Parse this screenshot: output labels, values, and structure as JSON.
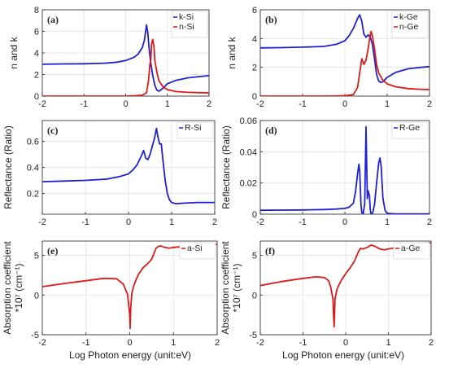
{
  "figure": {
    "xlabel_bottom": "Log Photon energy (unit:eV)"
  },
  "chart_data": [
    {
      "id": "a",
      "panel_label": "(a)",
      "type": "line",
      "ylabel": "n and k",
      "ylabel2": "",
      "xlim": [
        -2,
        2
      ],
      "ylim": [
        0,
        8
      ],
      "xticks": [
        -2,
        -1,
        0,
        1,
        2
      ],
      "yticks": [
        0,
        2,
        4,
        6,
        8
      ],
      "grid": true,
      "legend_position": "top-right",
      "series": [
        {
          "name": "k-Si",
          "color": "#1f1fd6",
          "x": [
            -2,
            -1.5,
            -1,
            -0.5,
            -0.2,
            0,
            0.2,
            0.3,
            0.4,
            0.45,
            0.5,
            0.53,
            0.56,
            0.6,
            0.65,
            0.7,
            0.75,
            0.8,
            0.9,
            1.0,
            1.2,
            1.5,
            1.8,
            2.0
          ],
          "y": [
            2.95,
            2.98,
            3.0,
            3.05,
            3.15,
            3.3,
            3.6,
            3.9,
            4.5,
            5.2,
            6.6,
            5.9,
            4.5,
            3.1,
            1.9,
            1.0,
            0.55,
            0.45,
            0.75,
            1.15,
            1.45,
            1.7,
            1.82,
            1.9
          ]
        },
        {
          "name": "n-Si",
          "color": "#e01818",
          "x": [
            -2,
            -1,
            -0.5,
            0,
            0.2,
            0.4,
            0.5,
            0.55,
            0.58,
            0.6,
            0.62,
            0.65,
            0.68,
            0.7,
            0.75,
            0.8,
            0.9,
            1.0,
            1.2,
            1.5,
            1.8,
            2.0
          ],
          "y": [
            0,
            0,
            0,
            0,
            0.02,
            0.08,
            0.3,
            1.5,
            2.9,
            3.3,
            4.8,
            5.25,
            4.6,
            3.3,
            2.2,
            1.4,
            0.85,
            0.6,
            0.42,
            0.35,
            0.32,
            0.3
          ]
        }
      ]
    },
    {
      "id": "b",
      "panel_label": "(b)",
      "type": "line",
      "ylabel": "n and k",
      "ylabel2": "",
      "xlim": [
        -2,
        2
      ],
      "ylim": [
        0,
        6
      ],
      "xticks": [
        -2,
        -1,
        0,
        1,
        2
      ],
      "yticks": [
        0,
        2,
        4,
        6
      ],
      "grid": true,
      "legend_position": "top-right",
      "series": [
        {
          "name": "k-Ge",
          "color": "#1f1fd6",
          "x": [
            -2,
            -1.5,
            -1,
            -0.5,
            -0.2,
            0,
            0.1,
            0.2,
            0.3,
            0.35,
            0.4,
            0.45,
            0.5,
            0.55,
            0.6,
            0.65,
            0.7,
            0.75,
            0.8,
            0.85,
            0.9,
            1.0,
            1.2,
            1.5,
            1.8,
            2.0
          ],
          "y": [
            3.35,
            3.37,
            3.4,
            3.45,
            3.6,
            3.85,
            4.2,
            4.7,
            5.4,
            5.65,
            5.2,
            4.3,
            4.1,
            4.25,
            4.1,
            3.6,
            2.6,
            1.5,
            1.05,
            0.95,
            1.0,
            1.3,
            1.65,
            1.9,
            2.0,
            2.05
          ]
        },
        {
          "name": "n-Ge",
          "color": "#e01818",
          "x": [
            -2,
            -1,
            -0.5,
            -0.2,
            0,
            0.2,
            0.3,
            0.35,
            0.4,
            0.45,
            0.5,
            0.55,
            0.58,
            0.62,
            0.65,
            0.7,
            0.75,
            0.8,
            0.9,
            1.0,
            1.2,
            1.5,
            1.8,
            2.0
          ],
          "y": [
            0,
            0,
            0,
            0.01,
            0.03,
            0.1,
            0.6,
            1.6,
            2.6,
            2.2,
            2.5,
            3.3,
            3.9,
            4.5,
            4.2,
            3.3,
            2.2,
            1.6,
            1.1,
            0.85,
            0.65,
            0.52,
            0.47,
            0.45
          ]
        }
      ]
    },
    {
      "id": "c",
      "panel_label": "(c)",
      "type": "line",
      "ylabel": "Reflectance (Ratio)",
      "ylabel2": "",
      "xlim": [
        -2,
        2
      ],
      "ylim": [
        0.04,
        0.76
      ],
      "xticks": [
        -2,
        -1,
        0,
        1,
        2
      ],
      "yticks": [
        0.2,
        0.4,
        0.6
      ],
      "grid": true,
      "legend_position": "top-right",
      "series": [
        {
          "name": "R-Si",
          "color": "#1f1fd6",
          "x": [
            -2,
            -1.5,
            -1,
            -0.5,
            -0.2,
            0,
            0.1,
            0.2,
            0.3,
            0.35,
            0.4,
            0.45,
            0.5,
            0.55,
            0.6,
            0.65,
            0.68,
            0.72,
            0.76,
            0.8,
            0.85,
            0.9,
            0.95,
            1.0,
            1.1,
            1.3,
            1.6,
            2.0
          ],
          "y": [
            0.29,
            0.295,
            0.3,
            0.31,
            0.33,
            0.35,
            0.38,
            0.42,
            0.49,
            0.53,
            0.47,
            0.46,
            0.5,
            0.56,
            0.62,
            0.7,
            0.64,
            0.58,
            0.58,
            0.45,
            0.3,
            0.2,
            0.15,
            0.13,
            0.12,
            0.125,
            0.13,
            0.13
          ]
        }
      ]
    },
    {
      "id": "d",
      "panel_label": "(d)",
      "type": "line",
      "ylabel": "Reflectance (Ratio)",
      "ylabel2": "",
      "xlim": [
        -2,
        2
      ],
      "ylim": [
        0,
        0.06
      ],
      "xticks": [
        -2,
        -1,
        0,
        1,
        2
      ],
      "yticks": [
        0,
        0.02,
        0.04,
        0.06
      ],
      "grid": true,
      "legend_position": "top-right",
      "series": [
        {
          "name": "R-Ge",
          "color": "#1f1fd6",
          "x": [
            -2,
            -1.5,
            -1,
            -0.5,
            -0.2,
            0,
            0.1,
            0.2,
            0.25,
            0.3,
            0.33,
            0.35,
            0.38,
            0.4,
            0.43,
            0.47,
            0.5,
            0.53,
            0.55,
            0.58,
            0.6,
            0.62,
            0.65,
            0.7,
            0.75,
            0.8,
            0.83,
            0.86,
            0.9,
            0.95,
            1.0,
            1.2,
            1.5,
            2.0
          ],
          "y": [
            0.0025,
            0.0026,
            0.0027,
            0.003,
            0.0033,
            0.0037,
            0.0045,
            0.007,
            0.014,
            0.026,
            0.032,
            0.028,
            0.006,
            0.001,
            0.0,
            0.007,
            0.056,
            0.01,
            0.015,
            0.012,
            0.003,
            0.0,
            0.0,
            0.006,
            0.02,
            0.033,
            0.036,
            0.03,
            0.01,
            0.0025,
            0.0005,
            0.0002,
            0.0002,
            0.0002
          ]
        }
      ]
    },
    {
      "id": "e",
      "panel_label": "(e)",
      "type": "line",
      "ylabel": "Absorption coefficient",
      "ylabel2": "*10⁷ (cm⁻¹)",
      "xlim": [
        -2,
        2
      ],
      "ylim": [
        -5,
        6.8
      ],
      "xticks": [
        -2,
        -1,
        0,
        1,
        2
      ],
      "yticks": [
        -5,
        0,
        5
      ],
      "grid": true,
      "legend_position": "top-right",
      "series": [
        {
          "name": "a-Si",
          "color": "#e01818",
          "x": [
            -2,
            -1.5,
            -1,
            -0.6,
            -0.3,
            -0.15,
            -0.05,
            0,
            0.01,
            0.02,
            0.05,
            0.1,
            0.15,
            0.2,
            0.3,
            0.4,
            0.5,
            0.6,
            0.65,
            0.7,
            0.8,
            0.9,
            1.0,
            1.2,
            1.5,
            1.8,
            2.0
          ],
          "y": [
            1.05,
            1.45,
            1.8,
            2.1,
            2.05,
            1.4,
            0.1,
            -2.5,
            -4.2,
            -1.8,
            0.3,
            1.3,
            2.0,
            2.6,
            3.4,
            3.9,
            4.5,
            5.9,
            6.1,
            6.2,
            6.0,
            5.9,
            6.0,
            6.1,
            6.2,
            6.3,
            6.4
          ]
        }
      ]
    },
    {
      "id": "f",
      "panel_label": "(f)",
      "type": "line",
      "ylabel": "Absorption coefficient",
      "ylabel2": "*10⁷ (cm⁻¹)",
      "xlim": [
        -2,
        2
      ],
      "ylim": [
        -5,
        6.8
      ],
      "xticks": [
        -2,
        -1,
        0,
        1,
        2
      ],
      "yticks": [
        -5,
        0,
        5
      ],
      "grid": true,
      "legend_position": "top-right",
      "series": [
        {
          "name": "a-Ge",
          "color": "#e01818",
          "x": [
            -2,
            -1.5,
            -1,
            -0.7,
            -0.5,
            -0.4,
            -0.35,
            -0.3,
            -0.28,
            -0.27,
            -0.25,
            -0.2,
            -0.1,
            0,
            0.1,
            0.2,
            0.3,
            0.35,
            0.4,
            0.5,
            0.6,
            0.7,
            0.8,
            0.9,
            1.0,
            1.2,
            1.5,
            1.8,
            2.0
          ],
          "y": [
            1.2,
            1.7,
            2.1,
            2.3,
            2.2,
            1.8,
            1.0,
            -0.5,
            -3.0,
            -4.0,
            -0.5,
            0.8,
            1.9,
            2.7,
            3.4,
            4.2,
            5.5,
            5.9,
            5.8,
            6.0,
            6.3,
            6.1,
            5.8,
            5.7,
            5.8,
            6.0,
            6.2,
            6.4,
            6.6
          ]
        }
      ]
    }
  ]
}
